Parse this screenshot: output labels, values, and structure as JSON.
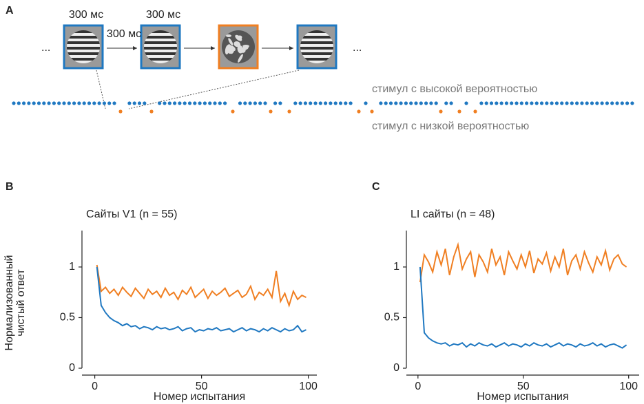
{
  "panel_a": {
    "label": "A",
    "durations": [
      "300 мс",
      "300 мс",
      "300 мс"
    ],
    "ellipsis": [
      "...",
      "..."
    ],
    "high_label": "стимул с высокой вероятностью",
    "low_label": "стимул с низкой вероятностью"
  },
  "chart_data": [
    {
      "type": "line",
      "panel_label": "B",
      "title": "Сайты V1 (n = 55)",
      "ylabel": [
        "Нормализованный",
        "чистый ответ"
      ],
      "xlabel": "Номер испытания",
      "x": [
        1,
        3,
        5,
        7,
        9,
        11,
        13,
        15,
        17,
        19,
        21,
        23,
        25,
        27,
        29,
        31,
        33,
        35,
        37,
        39,
        41,
        43,
        45,
        47,
        49,
        51,
        53,
        55,
        57,
        59,
        61,
        63,
        65,
        67,
        69,
        71,
        73,
        75,
        77,
        79,
        81,
        83,
        85,
        87,
        89,
        91,
        93,
        95,
        97,
        99
      ],
      "series": [
        {
          "color": "#f07f22",
          "values": [
            1.02,
            0.76,
            0.8,
            0.74,
            0.78,
            0.72,
            0.8,
            0.75,
            0.71,
            0.79,
            0.74,
            0.69,
            0.78,
            0.73,
            0.76,
            0.7,
            0.79,
            0.72,
            0.75,
            0.68,
            0.77,
            0.73,
            0.8,
            0.7,
            0.74,
            0.78,
            0.69,
            0.76,
            0.72,
            0.75,
            0.79,
            0.71,
            0.74,
            0.77,
            0.7,
            0.73,
            0.81,
            0.68,
            0.75,
            0.72,
            0.78,
            0.7,
            0.96,
            0.66,
            0.74,
            0.62,
            0.76,
            0.68,
            0.72,
            0.7
          ]
        },
        {
          "color": "#1f78c1",
          "values": [
            1.0,
            0.62,
            0.55,
            0.5,
            0.47,
            0.45,
            0.42,
            0.44,
            0.41,
            0.42,
            0.39,
            0.41,
            0.4,
            0.38,
            0.41,
            0.39,
            0.4,
            0.38,
            0.39,
            0.41,
            0.37,
            0.39,
            0.4,
            0.36,
            0.38,
            0.37,
            0.39,
            0.38,
            0.4,
            0.37,
            0.38,
            0.39,
            0.36,
            0.38,
            0.4,
            0.37,
            0.39,
            0.38,
            0.36,
            0.39,
            0.37,
            0.4,
            0.38,
            0.36,
            0.39,
            0.37,
            0.38,
            0.42,
            0.36,
            0.38
          ]
        }
      ],
      "xlim": [
        -6,
        104
      ],
      "ylim": [
        0,
        1.36
      ],
      "xticks": [
        0,
        50,
        100
      ],
      "yticks": [
        0,
        0.5,
        1
      ]
    },
    {
      "type": "line",
      "panel_label": "C",
      "title": "LI сайты (n = 48)",
      "xlabel": "Номер испытания",
      "x": [
        1,
        3,
        5,
        7,
        9,
        11,
        13,
        15,
        17,
        19,
        21,
        23,
        25,
        27,
        29,
        31,
        33,
        35,
        37,
        39,
        41,
        43,
        45,
        47,
        49,
        51,
        53,
        55,
        57,
        59,
        61,
        63,
        65,
        67,
        69,
        71,
        73,
        75,
        77,
        79,
        81,
        83,
        85,
        87,
        89,
        91,
        93,
        95,
        97,
        99
      ],
      "series": [
        {
          "color": "#f07f22",
          "values": [
            0.85,
            1.12,
            1.05,
            0.95,
            1.15,
            1.02,
            1.18,
            0.92,
            1.1,
            1.22,
            0.98,
            1.08,
            1.15,
            0.9,
            1.12,
            1.05,
            0.95,
            1.18,
            1.02,
            1.1,
            0.92,
            1.15,
            1.06,
            0.98,
            1.12,
            1.0,
            1.16,
            0.94,
            1.08,
            1.03,
            1.14,
            0.96,
            1.1,
            1.0,
            1.18,
            0.92,
            1.06,
            1.12,
            0.98,
            1.15,
            1.04,
            0.95,
            1.1,
            1.02,
            1.16,
            0.97,
            1.08,
            1.12,
            1.03,
            1.0
          ]
        },
        {
          "color": "#1f78c1",
          "values": [
            1.0,
            0.35,
            0.3,
            0.27,
            0.25,
            0.24,
            0.25,
            0.22,
            0.24,
            0.23,
            0.25,
            0.21,
            0.24,
            0.22,
            0.25,
            0.23,
            0.22,
            0.24,
            0.21,
            0.23,
            0.25,
            0.22,
            0.24,
            0.23,
            0.21,
            0.24,
            0.22,
            0.25,
            0.23,
            0.22,
            0.24,
            0.21,
            0.23,
            0.25,
            0.22,
            0.24,
            0.23,
            0.21,
            0.24,
            0.22,
            0.23,
            0.25,
            0.22,
            0.24,
            0.21,
            0.23,
            0.24,
            0.22,
            0.2,
            0.23
          ]
        }
      ],
      "xlim": [
        -5.5,
        105
      ],
      "ylim": [
        0,
        1.36
      ],
      "xticks": [
        0,
        50,
        100
      ],
      "yticks": [
        0,
        0.5,
        1
      ]
    }
  ]
}
